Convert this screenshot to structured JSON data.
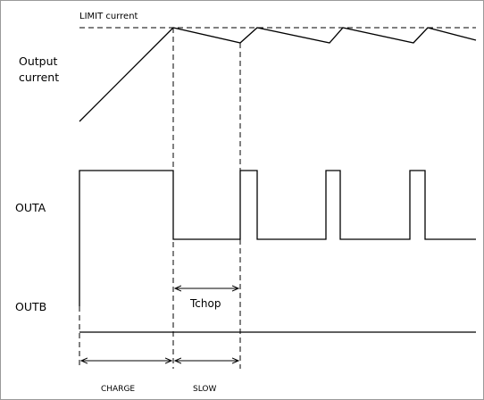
{
  "labels": {
    "limit_current": "LIMIT current",
    "output_current_line1": "Output",
    "output_current_line2": "current",
    "outa": "OUTA",
    "outb": "OUTB",
    "tchop": "Tchop",
    "charge": "CHARGE",
    "slow": "SLOW"
  }
}
